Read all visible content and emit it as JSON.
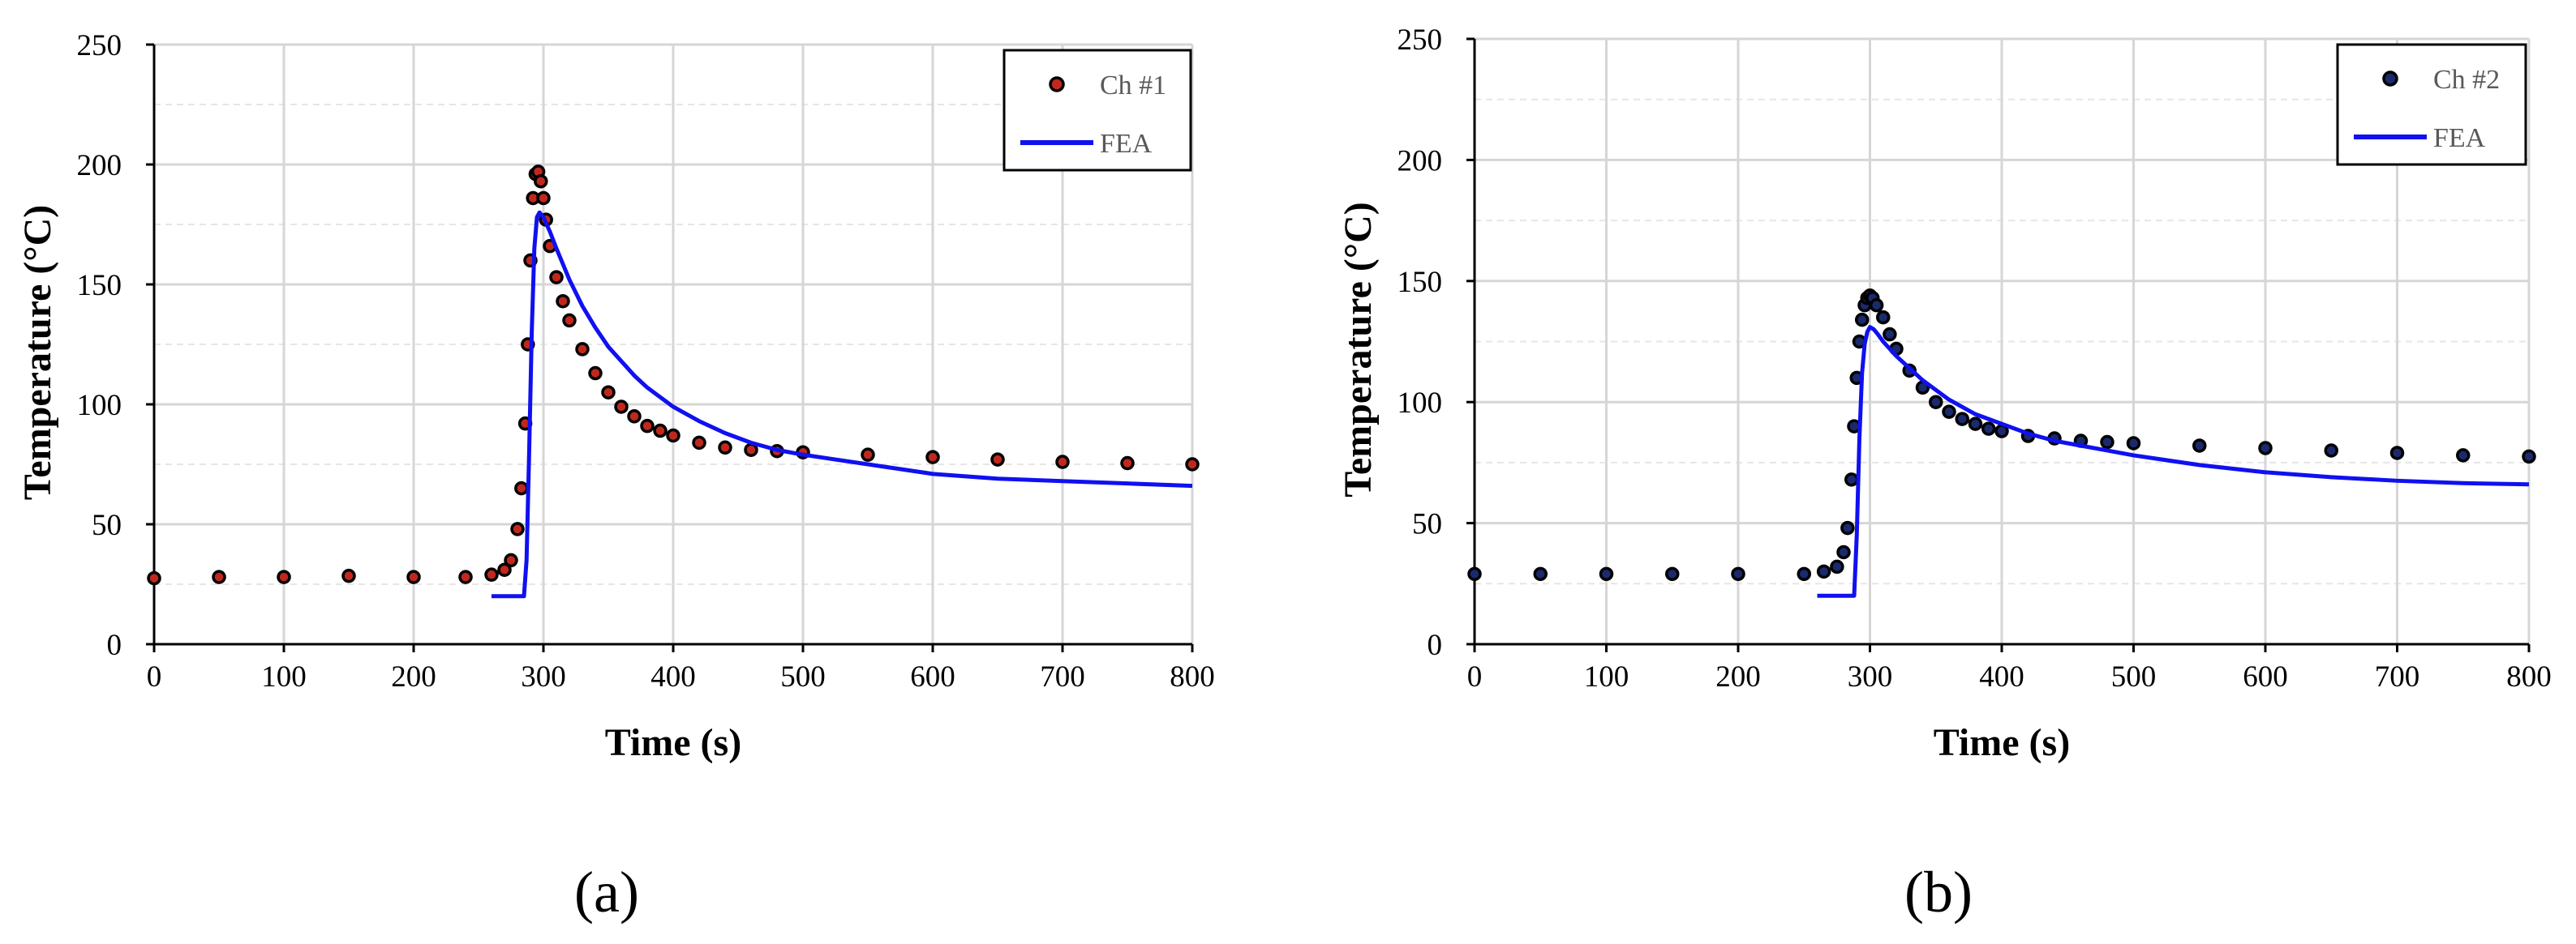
{
  "chart_data": [
    {
      "type": "scatter",
      "panel_label": "(a)",
      "xlabel": "Time (s)",
      "ylabel": "Temperature  (°C)",
      "xlim": [
        0,
        800
      ],
      "ylim": [
        0,
        250
      ],
      "xticks": [
        0,
        100,
        200,
        300,
        400,
        500,
        600,
        700,
        800
      ],
      "yticks": [
        0,
        50,
        100,
        150,
        200,
        250
      ],
      "grid": true,
      "legend_position": "top-right",
      "series": [
        {
          "name": "Ch #1",
          "kind": "markers",
          "color": "#c0281e",
          "edge_color": "#000000",
          "x": [
            0,
            50,
            100,
            150,
            200,
            240,
            260,
            270,
            275,
            280,
            283,
            286,
            288,
            290,
            292,
            294,
            296,
            298,
            300,
            302,
            305,
            310,
            315,
            320,
            330,
            340,
            350,
            360,
            370,
            380,
            390,
            400,
            420,
            440,
            460,
            480,
            500,
            550,
            600,
            650,
            700,
            750,
            800
          ],
          "y": [
            27.5,
            28,
            28,
            28.5,
            28,
            28,
            29,
            31,
            35,
            48,
            65,
            92,
            125,
            160,
            186,
            196,
            197,
            193,
            186,
            177,
            166,
            153,
            143,
            135,
            123,
            113,
            105,
            99,
            95,
            91,
            89,
            87,
            84,
            82,
            81,
            80.5,
            80,
            79,
            78,
            77,
            76,
            75.5,
            75
          ]
        },
        {
          "name": "FEA",
          "kind": "line",
          "color": "#1010f0",
          "x": [
            260,
            285,
            287,
            289,
            291,
            293,
            295,
            297,
            300,
            305,
            310,
            320,
            330,
            340,
            350,
            360,
            370,
            380,
            390,
            400,
            420,
            440,
            460,
            480,
            500,
            550,
            600,
            650,
            700,
            750,
            800
          ],
          "y": [
            20,
            20,
            35,
            80,
            130,
            165,
            178,
            180,
            178,
            172,
            165,
            152,
            141,
            132,
            124,
            118,
            112,
            107,
            103,
            99,
            93,
            88,
            84,
            81,
            79,
            75,
            71,
            69,
            68,
            67,
            66
          ]
        }
      ]
    },
    {
      "type": "scatter",
      "panel_label": "(b)",
      "xlabel": "Time (s)",
      "ylabel": "Temperature  (°C)",
      "xlim": [
        0,
        800
      ],
      "ylim": [
        0,
        250
      ],
      "xticks": [
        0,
        100,
        200,
        300,
        400,
        500,
        600,
        700,
        800
      ],
      "yticks": [
        0,
        50,
        100,
        150,
        200,
        250
      ],
      "grid": true,
      "legend_position": "top-right",
      "series": [
        {
          "name": "Ch #2",
          "kind": "markers",
          "color": "#1a2a6c",
          "edge_color": "#000000",
          "x": [
            0,
            50,
            100,
            150,
            200,
            250,
            265,
            275,
            280,
            283,
            286,
            288,
            290,
            292,
            294,
            296,
            298,
            300,
            302,
            305,
            310,
            315,
            320,
            330,
            340,
            350,
            360,
            370,
            380,
            390,
            400,
            420,
            440,
            460,
            480,
            500,
            550,
            600,
            650,
            700,
            750,
            800
          ],
          "y": [
            29,
            29,
            29,
            29,
            29,
            29,
            30,
            32,
            38,
            48,
            68,
            90,
            110,
            125,
            134,
            140,
            143,
            144,
            143,
            140,
            135,
            128,
            122,
            113,
            106,
            100,
            96,
            93,
            91,
            89,
            88,
            86,
            85,
            84,
            83.5,
            83,
            82,
            81,
            80,
            79,
            78,
            77.5
          ]
        },
        {
          "name": "FEA",
          "kind": "line",
          "color": "#1010f0",
          "x": [
            260,
            288,
            290,
            292,
            294,
            296,
            298,
            300,
            303,
            306,
            310,
            320,
            330,
            340,
            350,
            360,
            370,
            380,
            390,
            400,
            420,
            440,
            460,
            480,
            500,
            550,
            600,
            650,
            700,
            750,
            800
          ],
          "y": [
            20,
            20,
            45,
            85,
            112,
            124,
            129,
            131,
            130,
            128,
            125,
            119,
            114,
            109,
            105,
            101,
            98,
            95,
            93,
            91,
            87,
            84,
            82,
            80,
            78,
            74,
            71,
            69,
            67.5,
            66.5,
            66
          ]
        }
      ]
    }
  ]
}
